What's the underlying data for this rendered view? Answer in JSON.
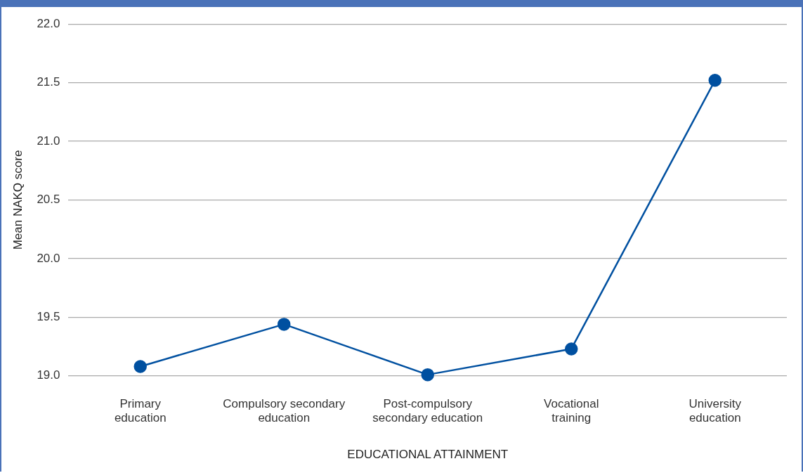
{
  "chart_data": {
    "type": "line",
    "xlabel": "EDUCATIONAL ATTAINMENT",
    "ylabel": "Mean NAKQ score",
    "categories": [
      "Primary\neducation",
      "Compulsory secondary\neducation",
      "Post-compulsory\nsecondary education",
      "Vocational\ntraining",
      "University\neducation"
    ],
    "series": [
      {
        "color": "#0050a0",
        "values": [
          19.08,
          19.44,
          19.01,
          19.23,
          21.52
        ]
      }
    ],
    "ylim": [
      19.0,
      22.0
    ],
    "yticks": [
      {
        "value": 19,
        "label": "19.0"
      },
      {
        "value": 19.5,
        "label": "19.5"
      },
      {
        "value": 20,
        "label": "20.0"
      },
      {
        "value": 20.5,
        "label": "20.5"
      },
      {
        "value": 21,
        "label": "21.0"
      },
      {
        "value": 21.5,
        "label": "21.5"
      },
      {
        "value": 22,
        "label": "22.0"
      }
    ],
    "grid": "y",
    "legend": false,
    "marker": "circle",
    "line_style": "solid"
  }
}
